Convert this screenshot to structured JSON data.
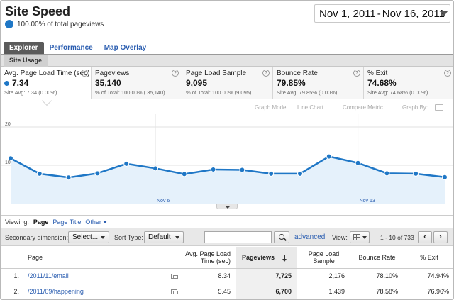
{
  "header": {
    "title": "Site Speed",
    "subtitle": "100.00% of total pageviews",
    "date_start": "Nov 1, 2011",
    "date_sep": "-",
    "date_end": "Nov 16, 2011"
  },
  "tabs": [
    "Explorer",
    "Performance",
    "Map Overlay"
  ],
  "subtab": "Site Usage",
  "metrics": [
    {
      "label": "Avg. Page Load Time (sec)",
      "value": "7.34",
      "sub": "Site Avg: 7.34 (0.00%)"
    },
    {
      "label": "Pageviews",
      "value": "35,140",
      "sub": "% of Total: 100.00% ( 35,140)"
    },
    {
      "label": "Page Load Sample",
      "value": "9,095",
      "sub": "% of Total: 100.00% (9,095)"
    },
    {
      "label": "Bounce Rate",
      "value": "79.85%",
      "sub": "Site Avg: 79.85% (0.00%)"
    },
    {
      "label": "% Exit",
      "value": "74.68%",
      "sub": "Site Avg: 74.68% (0.00%)"
    }
  ],
  "graph_controls": {
    "mode_label": "Graph Mode:",
    "mode_value": "Line Chart",
    "compare": "Compare Metric",
    "graph_by": "Graph By:"
  },
  "chart_data": {
    "type": "line",
    "ylim": [
      0,
      20
    ],
    "yticks": [
      "20",
      "10"
    ],
    "x_tick_labels": [
      {
        "label": "Nov 6",
        "index": 5
      },
      {
        "label": "Nov 13",
        "index": 12
      }
    ],
    "x": [
      "Nov 1",
      "Nov 2",
      "Nov 3",
      "Nov 4",
      "Nov 5",
      "Nov 6",
      "Nov 7",
      "Nov 8",
      "Nov 9",
      "Nov 10",
      "Nov 11",
      "Nov 12",
      "Nov 13",
      "Nov 14",
      "Nov 15",
      "Nov 16"
    ],
    "series": [
      {
        "values": [
          11.8,
          7.8,
          6.8,
          7.9,
          10.4,
          9.2,
          7.7,
          8.9,
          8.8,
          7.8,
          7.8,
          12.3,
          10.6,
          7.9,
          7.8,
          6.9
        ]
      }
    ],
    "color": "#1f77c6",
    "fill": "#e5f1fb",
    "grid": true
  },
  "viewing": {
    "label": "Viewing:",
    "current": "Page",
    "option1": "Page Title",
    "option2": "Other"
  },
  "toolbar": {
    "secondary_label": "Secondary dimension:",
    "secondary_value": "Select...",
    "sort_label": "Sort Type:",
    "sort_value": "Default",
    "search_placeholder": "",
    "advanced": "advanced",
    "view_label": "View:",
    "pager": "1 - 10 of 733",
    "prev": "‹",
    "next": "›"
  },
  "table": {
    "headers": [
      "Page",
      "Avg. Page Load Time (sec)",
      "Pageviews",
      "Page Load Sample",
      "Bounce Rate",
      "% Exit"
    ],
    "rows": [
      {
        "idx": "1.",
        "page": "/2011/11/email",
        "load": "8.34",
        "pageviews": "7,725",
        "sample": "2,176",
        "bounce": "78.10%",
        "exit": "74.94%"
      },
      {
        "idx": "2.",
        "page": "/2011/09/happening",
        "load": "5.45",
        "pageviews": "6,700",
        "sample": "1,439",
        "bounce": "78.58%",
        "exit": "76.96%"
      }
    ]
  }
}
